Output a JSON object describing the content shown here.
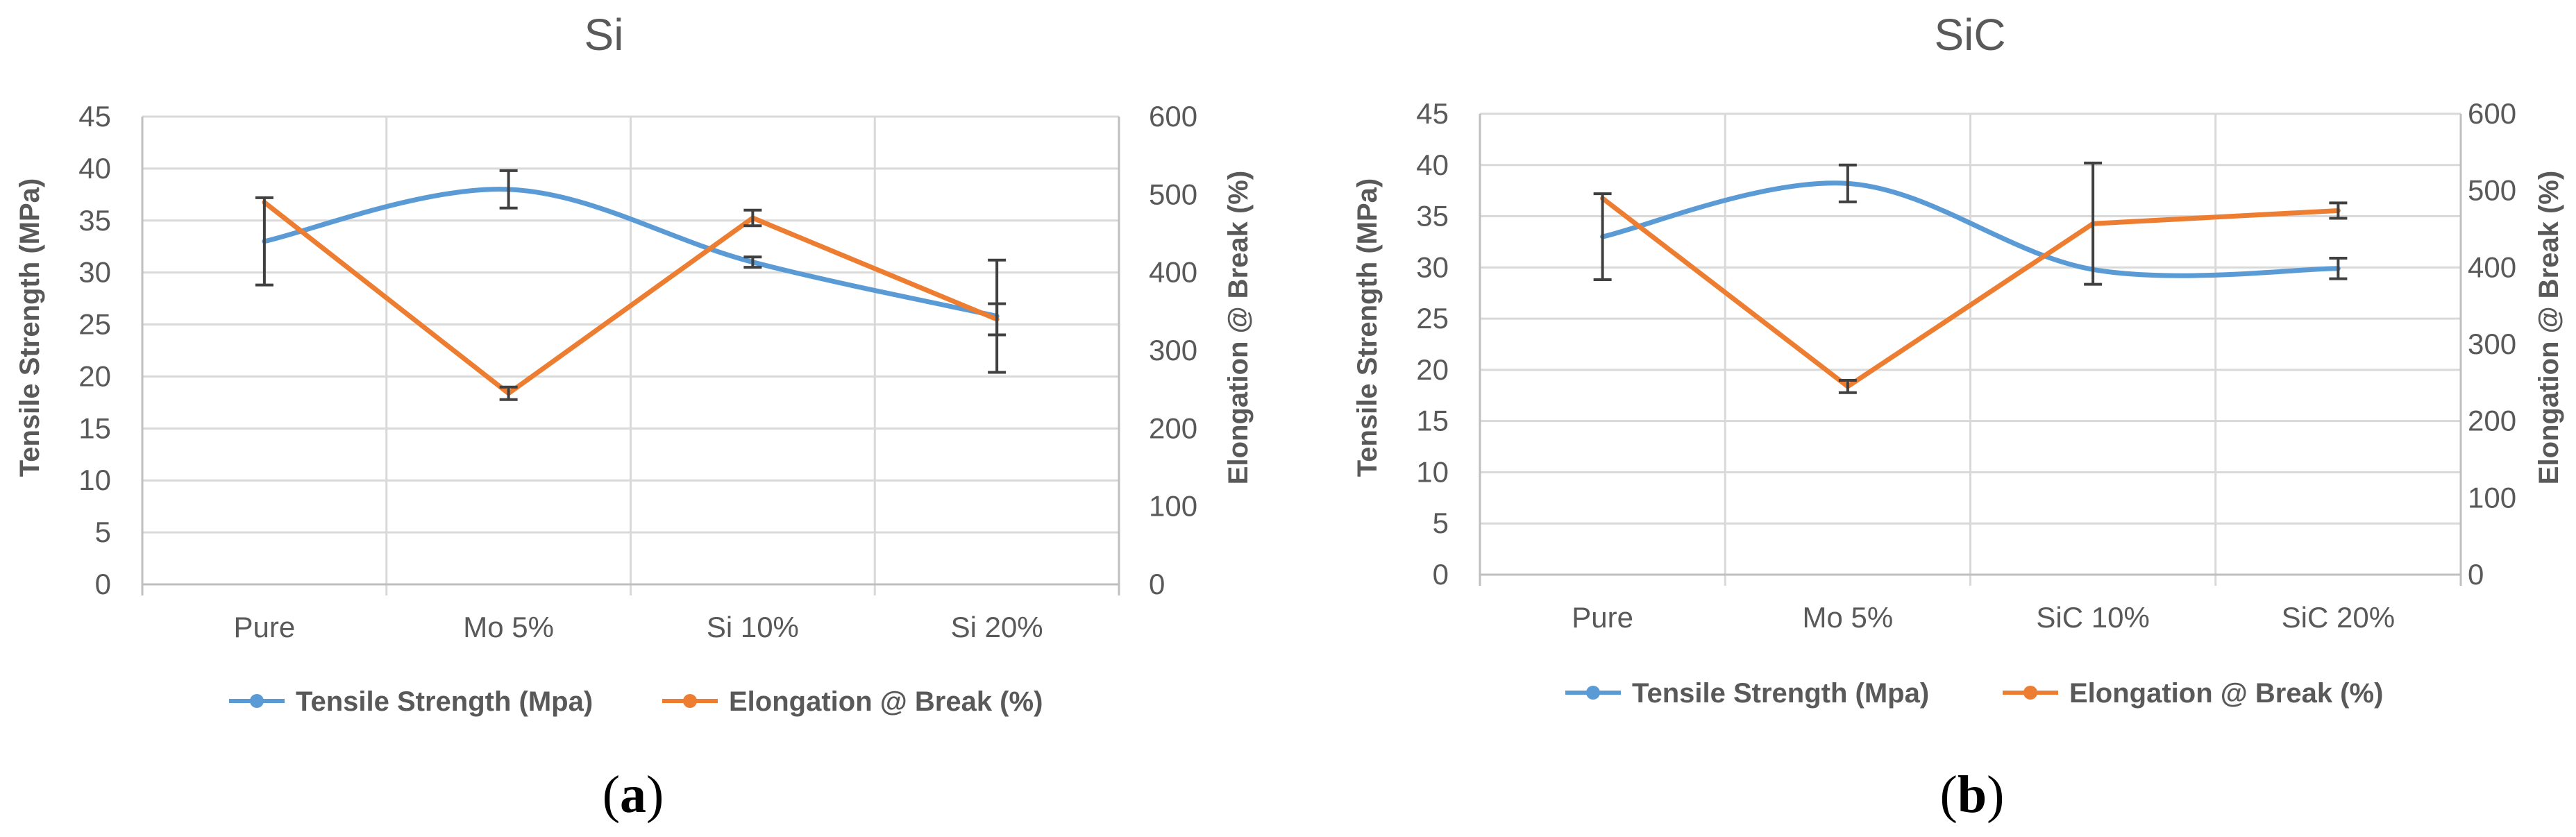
{
  "chart_data": [
    {
      "type": "line",
      "title": "Si",
      "categories": [
        "Pure",
        "Mo 5%",
        "Si 10%",
        "Si 20%"
      ],
      "xlabel": "",
      "ylabel": "Tensile Strength (MPa)",
      "y2label": "Elongation @ Break (%)",
      "ylim": [
        0,
        45
      ],
      "yticks": [
        0,
        5,
        10,
        15,
        20,
        25,
        30,
        35,
        40,
        45
      ],
      "y2lim": [
        0,
        600
      ],
      "y2ticks": [
        0,
        100,
        200,
        300,
        400,
        500,
        600
      ],
      "grid": true,
      "legend_position": "bottom",
      "caption": "(a)",
      "caption_letter": "a",
      "series": [
        {
          "name": "Tensile Strength (Mpa)",
          "axis": "left",
          "color": "#5b9bd5",
          "smooth": true,
          "values": [
            33,
            38,
            31,
            25.8
          ],
          "errors": [
            4.2,
            1.8,
            0.5,
            5.4
          ]
        },
        {
          "name": "Elongation @ Break (%)",
          "axis": "right",
          "color": "#ed7d31",
          "smooth": false,
          "values": [
            490,
            245,
            470,
            340
          ],
          "errors": [
            0,
            8,
            10,
            20
          ]
        }
      ]
    },
    {
      "type": "line",
      "title": "SiC",
      "categories": [
        "Pure",
        "Mo 5%",
        "SiC 10%",
        "SiC 20%"
      ],
      "xlabel": "",
      "ylabel": "Tensile Strength (MPa)",
      "y2label": "Elongation @ Break (%)",
      "ylim": [
        0,
        45
      ],
      "yticks": [
        0,
        5,
        10,
        15,
        20,
        25,
        30,
        35,
        40,
        45
      ],
      "y2lim": [
        0,
        600
      ],
      "y2ticks": [
        0,
        100,
        200,
        300,
        400,
        500,
        600
      ],
      "grid": true,
      "legend_position": "bottom",
      "caption": "(b)",
      "caption_letter": "b",
      "series": [
        {
          "name": "Tensile Strength (Mpa)",
          "axis": "left",
          "color": "#5b9bd5",
          "smooth": true,
          "values": [
            33,
            38.2,
            29.8,
            29.9
          ],
          "errors": [
            4.2,
            1.8,
            0,
            1
          ]
        },
        {
          "name": "Elongation @ Break (%)",
          "axis": "right",
          "color": "#ed7d31",
          "smooth": false,
          "values": [
            490,
            245,
            457,
            474
          ],
          "errors": [
            0,
            8,
            79,
            10
          ]
        }
      ]
    }
  ]
}
